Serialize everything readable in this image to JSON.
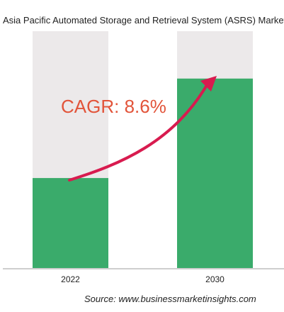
{
  "chart_data": {
    "type": "bar",
    "title": "Asia Pacific Automated Storage and Retrieval System (ASRS) Market",
    "categories": [
      "2022",
      "2030"
    ],
    "values": [
      38,
      80
    ],
    "ylim": [
      0,
      100
    ],
    "xlabel": "",
    "ylabel": "",
    "grid": false,
    "bar_color": "#3aab6b",
    "track_color": "#ece9ea",
    "annotation": {
      "text": "CAGR: 8.6%",
      "color": "#e2543a",
      "arrow_color": "#d81b4f"
    },
    "source": "Source: www.businessmarketinsights.com"
  }
}
